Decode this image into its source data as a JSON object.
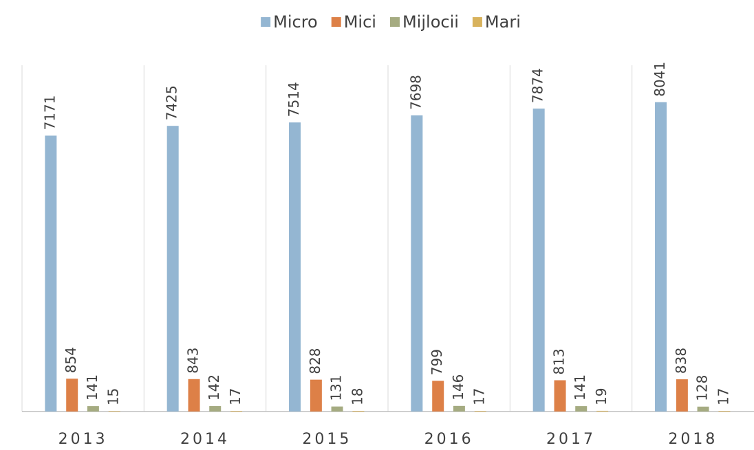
{
  "chart_data": {
    "type": "bar",
    "categories": [
      "2013",
      "2014",
      "2015",
      "2016",
      "2017",
      "2018"
    ],
    "series": [
      {
        "name": "Micro",
        "color": "#94b6d2",
        "values": [
          7171,
          7425,
          7514,
          7698,
          7874,
          8041
        ]
      },
      {
        "name": "Mici",
        "color": "#dd8047",
        "values": [
          854,
          843,
          828,
          799,
          813,
          838
        ]
      },
      {
        "name": "Mijlocii",
        "color": "#a5ab81",
        "values": [
          141,
          142,
          131,
          146,
          141,
          128
        ]
      },
      {
        "name": "Mari",
        "color": "#d8b25c",
        "values": [
          15,
          17,
          18,
          17,
          19,
          17
        ]
      }
    ],
    "ylim": [
      0,
      9000
    ],
    "legend": "top"
  }
}
